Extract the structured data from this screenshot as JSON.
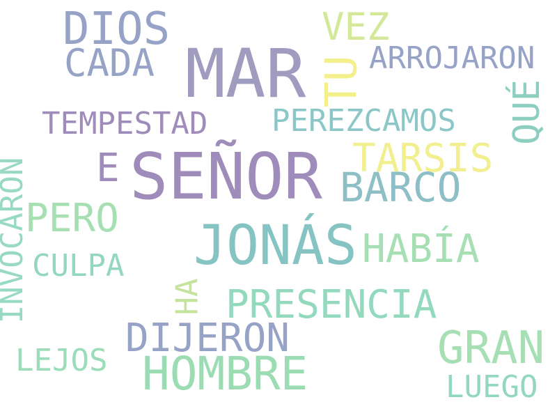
{
  "words": {
    "senor": {
      "text": "SEÑOR",
      "color": "#a08cba"
    },
    "mar": {
      "text": "MAR",
      "color": "#a09cc0"
    },
    "jonas": {
      "text": "JONÁS",
      "color": "#86c3c3"
    },
    "dios": {
      "text": "DIOS",
      "color": "#97a3c6"
    },
    "hombre": {
      "text": "HOMBRE",
      "color": "#9bdcb3"
    },
    "gran": {
      "text": "GRAN",
      "color": "#a6dfb3"
    },
    "cada": {
      "text": "CADA",
      "color": "#97a3c6"
    },
    "vez": {
      "text": "VEZ",
      "color": "#d4e89a"
    },
    "tu": {
      "text": "TU",
      "color": "#f3ef8a"
    },
    "arrojaron": {
      "text": "ARROJARON",
      "color": "#97a3c6"
    },
    "que": {
      "text": "QUÉ",
      "color": "#8ccfc1"
    },
    "tempestad": {
      "text": "TEMPESTAD",
      "color": "#a08cba"
    },
    "perezcamos": {
      "text": "PEREZCAMOS",
      "color": "#8cc7c8"
    },
    "tarsis": {
      "text": "TARSIS",
      "color": "#f1ef8f"
    },
    "e": {
      "text": "E",
      "color": "#a08cba"
    },
    "barco": {
      "text": "BARCO",
      "color": "#8ebfc6"
    },
    "invocaron": {
      "text": "INVOCARON",
      "color": "#97d9c2"
    },
    "pero": {
      "text": "PERO",
      "color": "#a6e0b2"
    },
    "habia": {
      "text": "HABÍA",
      "color": "#a6dfb3"
    },
    "culpa": {
      "text": "CULPA",
      "color": "#93d7c2"
    },
    "ha": {
      "text": "HA",
      "color": "#c5e39f"
    },
    "presencia": {
      "text": "PRESENCIA",
      "color": "#93d9bd"
    },
    "dijeron": {
      "text": "DIJERON",
      "color": "#97a3c6"
    },
    "lejos": {
      "text": "LEJOS",
      "color": "#9bdcb9"
    },
    "luego": {
      "text": "LUEGO",
      "color": "#93d7c2"
    }
  }
}
